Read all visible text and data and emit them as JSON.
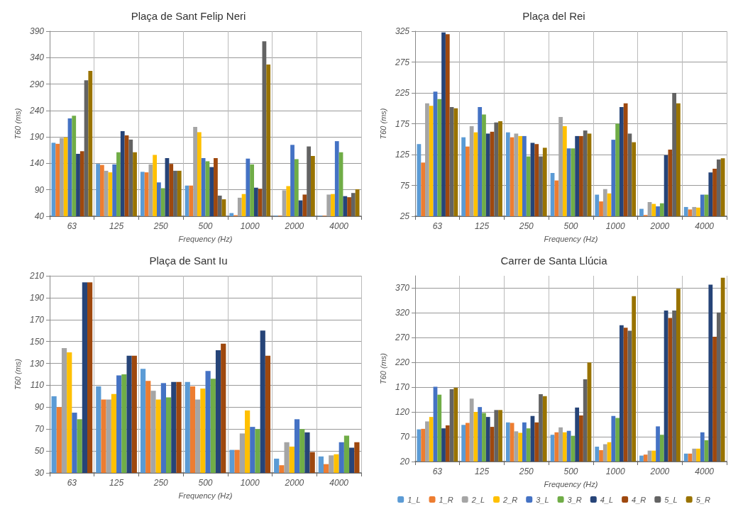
{
  "chart_data": [
    {
      "type": "bar",
      "title": "Plaça de Sant Felip Neri",
      "xlabel": "Frequency (Hz)",
      "ylabel": "T60 (ms)",
      "categories": [
        "63",
        "125",
        "250",
        "500",
        "1000",
        "2000",
        "4000"
      ],
      "ylim": [
        40,
        390
      ],
      "yticks": [
        40,
        90,
        140,
        190,
        240,
        290,
        340,
        390
      ],
      "grid": true,
      "legend": false,
      "series": [
        {
          "color": "#5b9bd5",
          "values": [
            179,
            139,
            124,
            98,
            46,
            41,
            41
          ]
        },
        {
          "color": "#ed7d31",
          "values": [
            177,
            137,
            123,
            98,
            42,
            41,
            41
          ]
        },
        {
          "color": "#a5a5a5",
          "values": [
            188,
            126,
            138,
            209,
            75,
            89,
            81
          ]
        },
        {
          "color": "#ffc000",
          "values": [
            189,
            123,
            156,
            199,
            82,
            97,
            82
          ]
        },
        {
          "color": "#4472c4",
          "values": [
            225,
            138,
            104,
            150,
            149,
            175,
            182
          ]
        },
        {
          "color": "#70ad47",
          "values": [
            230,
            161,
            93,
            144,
            138,
            148,
            161
          ]
        },
        {
          "color": "#264478",
          "values": [
            158,
            201,
            150,
            133,
            94,
            70,
            78
          ]
        },
        {
          "color": "#9e480e",
          "values": [
            163,
            193,
            139,
            150,
            92,
            81,
            76
          ]
        },
        {
          "color": "#636363",
          "values": [
            297,
            185,
            126,
            79,
            371,
            172,
            84
          ]
        },
        {
          "color": "#997300",
          "values": [
            315,
            161,
            126,
            72,
            327,
            154,
            91
          ]
        }
      ]
    },
    {
      "type": "bar",
      "title": "Plaça del Rei",
      "xlabel": "Frequency (Hz)",
      "ylabel": "T60 (ms)",
      "categories": [
        "63",
        "125",
        "250",
        "500",
        "1000",
        "2000",
        "4000"
      ],
      "ylim": [
        25,
        325
      ],
      "yticks": [
        25,
        75,
        125,
        175,
        225,
        275,
        325
      ],
      "grid": true,
      "legend": false,
      "series": [
        {
          "color": "#5b9bd5",
          "values": [
            142,
            153,
            161,
            95,
            60,
            37,
            40
          ]
        },
        {
          "color": "#ed7d31",
          "values": [
            112,
            138,
            153,
            83,
            49,
            27,
            36
          ]
        },
        {
          "color": "#a5a5a5",
          "values": [
            208,
            171,
            159,
            186,
            69,
            48,
            40
          ]
        },
        {
          "color": "#ffc000",
          "values": [
            204,
            161,
            155,
            171,
            62,
            45,
            39
          ]
        },
        {
          "color": "#4472c4",
          "values": [
            227,
            202,
            155,
            135,
            149,
            41,
            60
          ]
        },
        {
          "color": "#70ad47",
          "values": [
            215,
            190,
            122,
            135,
            175,
            46,
            60
          ]
        },
        {
          "color": "#264478",
          "values": [
            323,
            159,
            144,
            155,
            202,
            124,
            96
          ]
        },
        {
          "color": "#9e480e",
          "values": [
            320,
            162,
            142,
            155,
            208,
            133,
            102
          ]
        },
        {
          "color": "#636363",
          "values": [
            202,
            177,
            122,
            164,
            159,
            225,
            117
          ]
        },
        {
          "color": "#997300",
          "values": [
            200,
            179,
            136,
            159,
            145,
            208,
            119
          ]
        }
      ]
    },
    {
      "type": "bar",
      "title": "Plaça de Sant Iu",
      "xlabel": "Frequency (Hz)",
      "ylabel": "T60 (ms)",
      "categories": [
        "63",
        "125",
        "250",
        "500",
        "1000",
        "2000",
        "4000"
      ],
      "ylim": [
        30,
        210
      ],
      "yticks": [
        30,
        50,
        70,
        90,
        110,
        130,
        150,
        170,
        190,
        210
      ],
      "grid": true,
      "legend": false,
      "series": [
        {
          "color": "#5b9bd5",
          "values": [
            100,
            109,
            125,
            113,
            51,
            43,
            45
          ]
        },
        {
          "color": "#ed7d31",
          "values": [
            90,
            97,
            114,
            109,
            51,
            37,
            38
          ]
        },
        {
          "color": "#a5a5a5",
          "values": [
            144,
            97,
            105,
            97,
            66,
            58,
            46
          ]
        },
        {
          "color": "#ffc000",
          "values": [
            140,
            102,
            97,
            107,
            87,
            54,
            47
          ]
        },
        {
          "color": "#4472c4",
          "values": [
            85,
            119,
            112,
            123,
            72,
            79,
            58
          ]
        },
        {
          "color": "#70ad47",
          "values": [
            79,
            120,
            99,
            116,
            70,
            70,
            64
          ]
        },
        {
          "color": "#264478",
          "values": [
            204,
            137,
            113,
            142,
            160,
            67,
            53
          ]
        },
        {
          "color": "#9e480e",
          "values": [
            204,
            137,
            113,
            148,
            137,
            49,
            58
          ]
        }
      ]
    },
    {
      "type": "bar",
      "title": "Carrer de Santa Llúcia",
      "xlabel": "Frequency (Hz)",
      "ylabel": "T60 (ms)",
      "categories": [
        "63",
        "125",
        "250",
        "500",
        "1000",
        "2000",
        "4000"
      ],
      "ylim": [
        20,
        395
      ],
      "yticks": [
        20,
        70,
        120,
        170,
        220,
        270,
        320,
        370
      ],
      "grid": true,
      "legend": "bottom",
      "series": [
        {
          "name": "1_L",
          "color": "#5b9bd5",
          "values": [
            85,
            94,
            99,
            74,
            50,
            32,
            36
          ]
        },
        {
          "name": "1_R",
          "color": "#ed7d31",
          "values": [
            86,
            98,
            98,
            79,
            43,
            34,
            36
          ]
        },
        {
          "name": "2_L",
          "color": "#a5a5a5",
          "values": [
            101,
            147,
            81,
            89,
            55,
            42,
            46
          ]
        },
        {
          "name": "2_R",
          "color": "#ffc000",
          "values": [
            110,
            120,
            78,
            79,
            59,
            42,
            46
          ]
        },
        {
          "name": "3_L",
          "color": "#4472c4",
          "values": [
            171,
            130,
            99,
            82,
            112,
            91,
            79
          ]
        },
        {
          "name": "3_R",
          "color": "#70ad47",
          "values": [
            155,
            118,
            87,
            72,
            108,
            74,
            63
          ]
        },
        {
          "name": "4_L",
          "color": "#264478",
          "values": [
            87,
            110,
            112,
            129,
            295,
            325,
            377
          ]
        },
        {
          "name": "4_R",
          "color": "#9e480e",
          "values": [
            93,
            90,
            99,
            113,
            290,
            310,
            272
          ]
        },
        {
          "name": "5_L",
          "color": "#636363",
          "values": [
            166,
            124,
            156,
            186,
            284,
            325,
            321
          ]
        },
        {
          "name": "5_R",
          "color": "#997300",
          "values": [
            169,
            124,
            152,
            220,
            354,
            369,
            391
          ]
        }
      ]
    }
  ]
}
